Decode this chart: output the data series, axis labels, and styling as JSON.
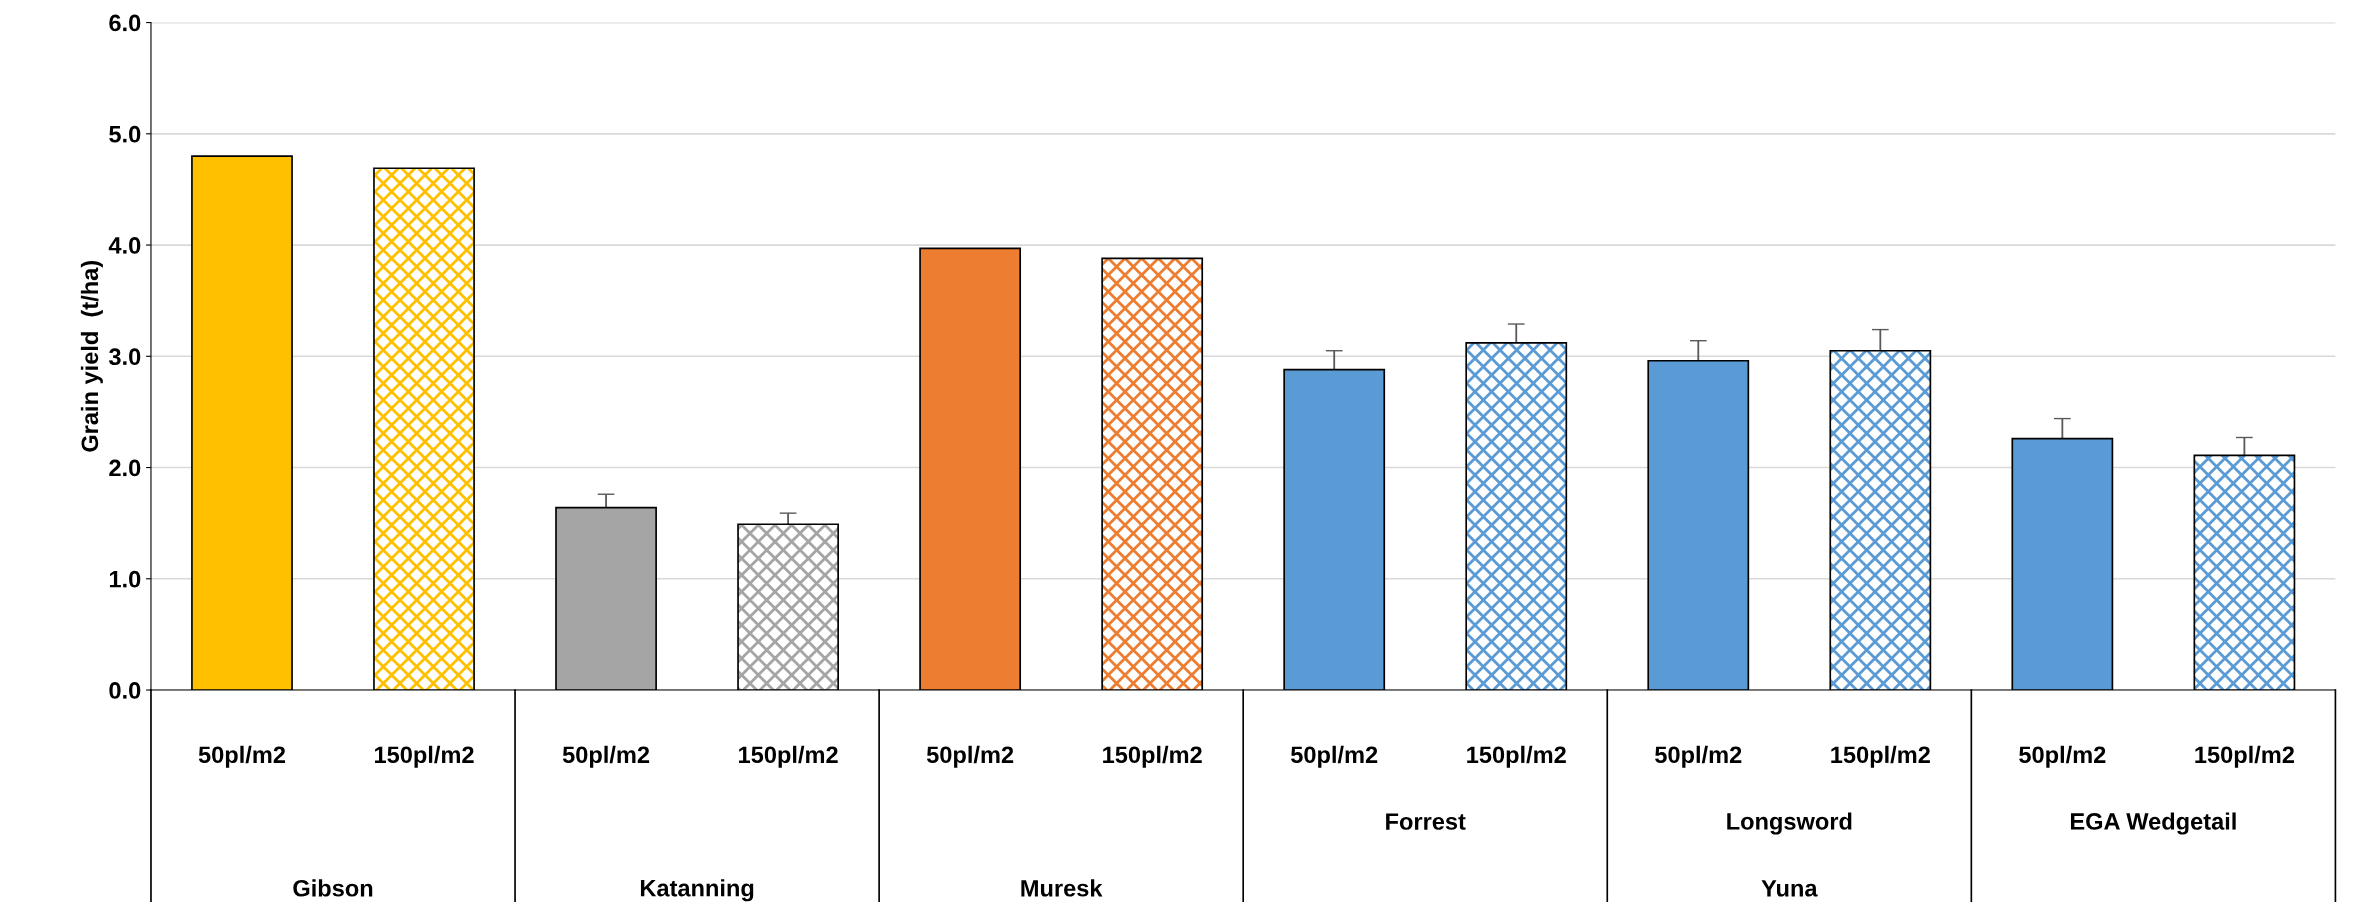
{
  "chart_data": {
    "type": "bar",
    "ylabel": "Grain yield  (t/ha)",
    "categories": [
      "50pl/m2",
      "150pl/m2",
      "50pl/m2",
      "150pl/m2",
      "50pl/m2",
      "150pl/m2",
      "50pl/m2",
      "150pl/m2",
      "50pl/m2",
      "150pl/m2",
      "50pl/m2",
      "150pl/m2"
    ],
    "series": [
      {
        "values": [
          4.8,
          null,
          1.64,
          null,
          3.97,
          null,
          2.88,
          null,
          2.96,
          null,
          2.26,
          null
        ],
        "colors": [
          "#ffc000",
          null,
          "#a5a5a5",
          null,
          "#ed7d31",
          null,
          "#5b9bd5",
          null,
          "#5b9bd5",
          null,
          "#5b9bd5",
          null
        ],
        "errors": [
          null,
          null,
          0.12,
          null,
          null,
          null,
          0.17,
          null,
          0.18,
          null,
          0.18,
          null
        ]
      },
      {
        "values": [
          null,
          4.69,
          null,
          1.49,
          null,
          3.88,
          null,
          3.12,
          null,
          3.05,
          null,
          2.11
        ],
        "colors": [
          null,
          "#ffc000",
          null,
          "#a5a5a5",
          null,
          "#ed7d31",
          null,
          "#5b9bd5",
          null,
          "#5b9bd5",
          null,
          "#5b9bd5"
        ],
        "errors": [
          null,
          null,
          null,
          0.1,
          null,
          null,
          null,
          0.17,
          null,
          0.19,
          null,
          0.16
        ]
      }
    ],
    "annotations": [
      "Forrest",
      "Longsword",
      "EGA Wedgetail",
      "Gibson",
      "Katanning",
      "Muresk",
      "Yuna"
    ],
    "ylim": [
      0,
      6
    ],
    "yticks": [
      {
        "value": 0,
        "label": "0.0"
      },
      {
        "value": 1,
        "label": "1.0"
      },
      {
        "value": 2,
        "label": "2.0"
      },
      {
        "value": 3,
        "label": "3.0"
      },
      {
        "value": 4,
        "label": "4.0"
      },
      {
        "value": 5,
        "label": "5.0"
      },
      {
        "value": 6,
        "label": "6.0"
      }
    ],
    "grid": "y",
    "legend": false
  }
}
